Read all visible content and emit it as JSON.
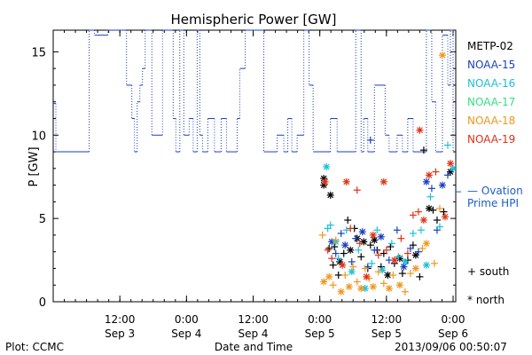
{
  "chart_data": {
    "type": "scatter",
    "title": "Hemispheric Power [GW]",
    "xlabel": "Date and Time",
    "ylabel": "P [GW]",
    "ylim": [
      0,
      16.3
    ],
    "y_ticks": [
      0,
      5,
      10,
      15
    ],
    "grid": false,
    "x_ticks": [
      {
        "x": 1.5,
        "time": "12:00",
        "date": "Sep 3"
      },
      {
        "x": 2.0,
        "time": "0:00",
        "date": "Sep 4"
      },
      {
        "x": 2.5,
        "time": "12:00",
        "date": "Sep 4"
      },
      {
        "x": 3.0,
        "time": "0:00",
        "date": "Sep 5"
      },
      {
        "x": 3.5,
        "time": "12:00",
        "date": "Sep 5"
      },
      {
        "x": 4.0,
        "time": "0:00",
        "date": "Sep 6"
      }
    ],
    "xlim": [
      1.0,
      4.02
    ],
    "legend_placement": "right",
    "legend": [
      {
        "name": "METP-02",
        "color": "#000000"
      },
      {
        "name": "NOAA-15",
        "color": "#1a3fbf"
      },
      {
        "name": "NOAA-16",
        "color": "#19c0d8"
      },
      {
        "name": "NOAA-17",
        "color": "#33e080"
      },
      {
        "name": "NOAA-18",
        "color": "#f0961c"
      },
      {
        "name": "NOAA-19",
        "color": "#e03015"
      }
    ],
    "marker_key": {
      "south": "+ south",
      "north": "* north"
    },
    "ovation": {
      "label_line1": "— Ovation",
      "label_line2": "Prime HPI",
      "value": 6.6,
      "color": "#1a5fc8"
    },
    "hpi_series": {
      "color": "#1a3fbf",
      "points": [
        [
          1.0,
          11.9
        ],
        [
          1.02,
          11.9
        ],
        [
          1.02,
          9.0
        ],
        [
          1.27,
          9.0
        ],
        [
          1.27,
          16.3
        ],
        [
          1.31,
          16.3
        ],
        [
          1.31,
          16.0
        ],
        [
          1.41,
          16.0
        ],
        [
          1.41,
          16.3
        ],
        [
          1.55,
          16.3
        ],
        [
          1.55,
          13.0
        ],
        [
          1.59,
          13.0
        ],
        [
          1.59,
          11.0
        ],
        [
          1.61,
          11.0
        ],
        [
          1.61,
          9.0
        ],
        [
          1.63,
          9.0
        ],
        [
          1.63,
          12.0
        ],
        [
          1.65,
          12.0
        ],
        [
          1.65,
          13.0
        ],
        [
          1.67,
          13.0
        ],
        [
          1.67,
          14.0
        ],
        [
          1.69,
          14.0
        ],
        [
          1.69,
          16.3
        ],
        [
          1.74,
          16.3
        ],
        [
          1.74,
          10.0
        ],
        [
          1.82,
          10.0
        ],
        [
          1.82,
          16.3
        ],
        [
          1.9,
          16.3
        ],
        [
          1.9,
          11.0
        ],
        [
          1.92,
          11.0
        ],
        [
          1.92,
          9.0
        ],
        [
          1.95,
          9.0
        ],
        [
          1.95,
          16.3
        ],
        [
          1.98,
          16.3
        ],
        [
          1.98,
          10.0
        ],
        [
          2.02,
          10.0
        ],
        [
          2.02,
          11.0
        ],
        [
          2.05,
          11.0
        ],
        [
          2.05,
          9.0
        ],
        [
          2.08,
          9.0
        ],
        [
          2.08,
          16.3
        ],
        [
          2.1,
          16.3
        ],
        [
          2.1,
          10.0
        ],
        [
          2.12,
          10.0
        ],
        [
          2.12,
          9.0
        ],
        [
          2.16,
          9.0
        ],
        [
          2.16,
          11.0
        ],
        [
          2.21,
          11.0
        ],
        [
          2.21,
          9.0
        ],
        [
          2.26,
          9.0
        ],
        [
          2.26,
          11.0
        ],
        [
          2.3,
          11.0
        ],
        [
          2.3,
          9.0
        ],
        [
          2.38,
          9.0
        ],
        [
          2.38,
          11.0
        ],
        [
          2.4,
          11.0
        ],
        [
          2.4,
          14.0
        ],
        [
          2.44,
          14.0
        ],
        [
          2.44,
          16.3
        ],
        [
          2.58,
          16.3
        ],
        [
          2.58,
          9.0
        ],
        [
          2.68,
          9.0
        ],
        [
          2.68,
          10.0
        ],
        [
          2.73,
          10.0
        ],
        [
          2.73,
          9.0
        ],
        [
          2.76,
          9.0
        ],
        [
          2.76,
          11.0
        ],
        [
          2.79,
          11.0
        ],
        [
          2.79,
          9.0
        ],
        [
          2.83,
          9.0
        ],
        [
          2.83,
          10.0
        ],
        [
          2.88,
          10.0
        ],
        [
          2.88,
          16.3
        ],
        [
          2.92,
          16.3
        ],
        [
          2.92,
          13.0
        ],
        [
          2.95,
          13.0
        ],
        [
          2.95,
          9.0
        ],
        [
          3.08,
          9.0
        ],
        [
          3.08,
          11.0
        ],
        [
          3.13,
          11.0
        ],
        [
          3.13,
          9.0
        ],
        [
          3.27,
          9.0
        ],
        [
          3.27,
          16.3
        ],
        [
          3.31,
          16.3
        ],
        [
          3.31,
          9.0
        ],
        [
          3.33,
          9.0
        ],
        [
          3.33,
          11.0
        ],
        [
          3.36,
          11.0
        ],
        [
          3.36,
          9.0
        ],
        [
          3.41,
          9.0
        ],
        [
          3.41,
          13.0
        ],
        [
          3.49,
          13.0
        ],
        [
          3.49,
          10.0
        ],
        [
          3.52,
          10.0
        ],
        [
          3.52,
          9.0
        ],
        [
          3.58,
          9.0
        ],
        [
          3.58,
          10.0
        ],
        [
          3.62,
          10.0
        ],
        [
          3.62,
          9.0
        ],
        [
          3.66,
          9.0
        ],
        [
          3.66,
          11.0
        ],
        [
          3.7,
          11.0
        ],
        [
          3.7,
          9.0
        ],
        [
          3.8,
          9.0
        ],
        [
          3.8,
          16.3
        ],
        [
          3.84,
          16.3
        ],
        [
          3.84,
          12.0
        ],
        [
          3.87,
          12.0
        ],
        [
          3.87,
          9.0
        ],
        [
          3.92,
          9.0
        ],
        [
          3.92,
          16.0
        ],
        [
          3.96,
          16.0
        ],
        [
          3.96,
          13.0
        ],
        [
          3.98,
          13.0
        ],
        [
          3.98,
          16.3
        ],
        [
          4.0,
          16.3
        ],
        [
          4.0,
          9.0
        ]
      ]
    },
    "series": [
      {
        "name": "METP-02",
        "color": "#000000",
        "points": [
          [
            3.03,
            7.4,
            "n"
          ],
          [
            3.03,
            7.0,
            "n"
          ],
          [
            3.08,
            6.4,
            "n"
          ],
          [
            3.07,
            3.2,
            "s"
          ],
          [
            3.1,
            2.2,
            "s"
          ],
          [
            3.11,
            3.3,
            "s"
          ],
          [
            3.14,
            1.6,
            "s"
          ],
          [
            3.15,
            2.4,
            "n"
          ],
          [
            3.18,
            2.9,
            "s"
          ],
          [
            3.21,
            4.9,
            "s"
          ],
          [
            3.23,
            3.1,
            "n"
          ],
          [
            3.26,
            4.4,
            "s"
          ],
          [
            3.28,
            3.8,
            "n"
          ],
          [
            3.31,
            2.7,
            "s"
          ],
          [
            3.33,
            3.6,
            "n"
          ],
          [
            3.36,
            2.0,
            "s"
          ],
          [
            3.38,
            3.4,
            "s"
          ],
          [
            3.41,
            3.7,
            "n"
          ],
          [
            3.43,
            3.1,
            "s"
          ],
          [
            3.46,
            2.1,
            "s"
          ],
          [
            3.48,
            2.9,
            "s"
          ],
          [
            3.51,
            1.6,
            "n"
          ],
          [
            3.53,
            3.3,
            "s"
          ],
          [
            3.56,
            2.3,
            "s"
          ],
          [
            3.6,
            2.6,
            "n"
          ],
          [
            3.62,
            1.7,
            "s"
          ],
          [
            3.66,
            2.5,
            "s"
          ],
          [
            3.7,
            3.4,
            "s"
          ],
          [
            3.72,
            2.8,
            "n"
          ],
          [
            3.75,
            1.5,
            "s"
          ],
          [
            3.78,
            9.1,
            "s"
          ],
          [
            3.82,
            5.6,
            "n"
          ],
          [
            3.85,
            5.5,
            "s"
          ],
          [
            3.88,
            4.9,
            "s"
          ],
          [
            3.93,
            5.4,
            "s"
          ],
          [
            3.98,
            7.8,
            "n"
          ]
        ]
      },
      {
        "name": "NOAA-15",
        "color": "#1a3fbf",
        "points": [
          [
            3.38,
            9.7,
            "s"
          ],
          [
            3.09,
            3.6,
            "n"
          ],
          [
            3.12,
            2.9,
            "s"
          ],
          [
            3.16,
            4.1,
            "s"
          ],
          [
            3.19,
            3.4,
            "n"
          ],
          [
            3.24,
            2.4,
            "s"
          ],
          [
            3.27,
            3.8,
            "s"
          ],
          [
            3.32,
            4.2,
            "n"
          ],
          [
            3.36,
            2.1,
            "s"
          ],
          [
            3.41,
            3.1,
            "s"
          ],
          [
            3.46,
            3.9,
            "n"
          ],
          [
            3.52,
            2.5,
            "s"
          ],
          [
            3.58,
            4.3,
            "s"
          ],
          [
            3.63,
            2.1,
            "n"
          ],
          [
            3.68,
            3.2,
            "s"
          ],
          [
            3.74,
            3.0,
            "s"
          ],
          [
            3.8,
            7.2,
            "n"
          ],
          [
            3.84,
            6.8,
            "s"
          ],
          [
            3.88,
            4.3,
            "s"
          ],
          [
            3.92,
            7.0,
            "n"
          ],
          [
            3.96,
            7.6,
            "s"
          ]
        ]
      },
      {
        "name": "NOAA-16",
        "color": "#19c0d8",
        "points": [
          [
            3.05,
            8.1,
            "n"
          ],
          [
            3.06,
            4.4,
            "s"
          ],
          [
            3.08,
            4.6,
            "s"
          ],
          [
            3.12,
            3.6,
            "n"
          ],
          [
            3.14,
            2.6,
            "s"
          ],
          [
            3.2,
            4.3,
            "s"
          ],
          [
            3.24,
            1.8,
            "n"
          ],
          [
            3.29,
            3.1,
            "s"
          ],
          [
            3.34,
            0.8,
            "n"
          ],
          [
            3.39,
            2.3,
            "s"
          ],
          [
            3.43,
            4.3,
            "s"
          ],
          [
            3.47,
            1.9,
            "n"
          ],
          [
            3.54,
            3.5,
            "s"
          ],
          [
            3.59,
            2.7,
            "s"
          ],
          [
            3.64,
            2.4,
            "n"
          ],
          [
            3.7,
            4.1,
            "s"
          ],
          [
            3.76,
            4.3,
            "s"
          ],
          [
            3.8,
            2.2,
            "n"
          ],
          [
            3.83,
            6.3,
            "s"
          ],
          [
            3.9,
            4.5,
            "s"
          ],
          [
            3.96,
            9.4,
            "s"
          ],
          [
            4.0,
            8.0,
            "n"
          ]
        ]
      },
      {
        "name": "NOAA-18",
        "color": "#f0961c",
        "points": [
          [
            3.92,
            14.8,
            "n"
          ],
          [
            3.02,
            4.0,
            "s"
          ],
          [
            3.03,
            1.2,
            "n"
          ],
          [
            3.07,
            1.5,
            "n"
          ],
          [
            3.1,
            1.0,
            "s"
          ],
          [
            3.12,
            3.7,
            "s"
          ],
          [
            3.16,
            0.6,
            "n"
          ],
          [
            3.19,
            1.6,
            "s"
          ],
          [
            3.22,
            0.9,
            "n"
          ],
          [
            3.25,
            2.1,
            "s"
          ],
          [
            3.28,
            1.2,
            "s"
          ],
          [
            3.31,
            0.8,
            "n"
          ],
          [
            3.34,
            2.0,
            "s"
          ],
          [
            3.37,
            1.4,
            "s"
          ],
          [
            3.4,
            0.9,
            "n"
          ],
          [
            3.44,
            1.8,
            "s"
          ],
          [
            3.48,
            1.1,
            "s"
          ],
          [
            3.52,
            0.8,
            "n"
          ],
          [
            3.55,
            1.6,
            "s"
          ],
          [
            3.6,
            1.0,
            "n"
          ],
          [
            3.64,
            0.6,
            "s"
          ],
          [
            3.68,
            1.7,
            "s"
          ],
          [
            3.72,
            2.0,
            "n"
          ],
          [
            3.77,
            3.2,
            "s"
          ],
          [
            3.8,
            3.5,
            "n"
          ],
          [
            3.86,
            2.3,
            "s"
          ],
          [
            3.9,
            5.6,
            "s"
          ]
        ]
      },
      {
        "name": "NOAA-19",
        "color": "#e03015",
        "points": [
          [
            3.75,
            10.3,
            "n"
          ],
          [
            3.04,
            7.2,
            "n"
          ],
          [
            3.2,
            7.2,
            "n"
          ],
          [
            3.28,
            6.7,
            "s"
          ],
          [
            3.48,
            7.2,
            "n"
          ],
          [
            3.06,
            3.1,
            "s"
          ],
          [
            3.09,
            2.6,
            "s"
          ],
          [
            3.17,
            2.2,
            "n"
          ],
          [
            3.23,
            4.4,
            "s"
          ],
          [
            3.3,
            3.5,
            "s"
          ],
          [
            3.35,
            1.5,
            "n"
          ],
          [
            3.4,
            4.0,
            "n"
          ],
          [
            3.44,
            2.8,
            "s"
          ],
          [
            3.5,
            3.1,
            "s"
          ],
          [
            3.56,
            2.5,
            "n"
          ],
          [
            3.61,
            3.8,
            "s"
          ],
          [
            3.66,
            2.9,
            "s"
          ],
          [
            3.7,
            5.2,
            "s"
          ],
          [
            3.74,
            5.4,
            "s"
          ],
          [
            3.78,
            4.9,
            "n"
          ],
          [
            3.82,
            7.6,
            "n"
          ],
          [
            3.87,
            7.8,
            "s"
          ],
          [
            3.94,
            5.1,
            "n"
          ],
          [
            3.98,
            8.3,
            "n"
          ]
        ]
      }
    ]
  },
  "footer": {
    "plot_credit": "Plot: CCMC",
    "timestamp": "2013/09/06 00:50:07"
  }
}
